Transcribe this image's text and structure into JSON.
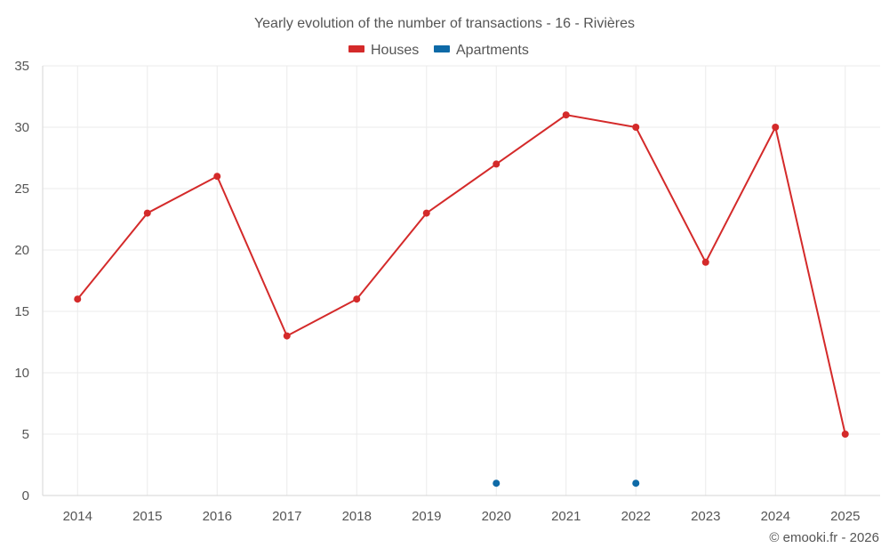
{
  "colors": {
    "houses": "#d42a2a",
    "apartments": "#0e6aa7",
    "grid": "#ebebeb",
    "text": "#555555"
  },
  "credit": "© emooki.fr - 2026",
  "chart_data": {
    "type": "line",
    "title": "Yearly evolution of the number of transactions - 16 - Rivières",
    "xlabel": "",
    "ylabel": "",
    "categories": [
      "2014",
      "2015",
      "2016",
      "2017",
      "2018",
      "2019",
      "2020",
      "2021",
      "2022",
      "2023",
      "2024",
      "2025"
    ],
    "ylim": [
      0,
      35
    ],
    "yticks": [
      0,
      5,
      10,
      15,
      20,
      25,
      30,
      35
    ],
    "grid": true,
    "legend_position": "top-center",
    "series": [
      {
        "name": "Houses",
        "key": "houses",
        "values": [
          16,
          23,
          26,
          13,
          16,
          23,
          27,
          31,
          30,
          19,
          30,
          5
        ]
      },
      {
        "name": "Apartments",
        "key": "apartments",
        "values": [
          null,
          null,
          null,
          null,
          null,
          null,
          1,
          null,
          1,
          null,
          null,
          null
        ]
      }
    ]
  }
}
